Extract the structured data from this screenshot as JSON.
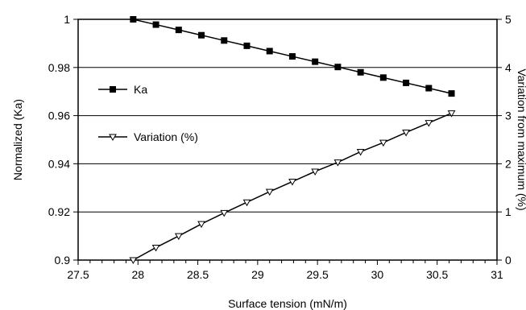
{
  "chart_data": {
    "type": "line",
    "title": "",
    "xlabel": "Surface tension (mN/m)",
    "ylabel": "Normalized (Ka)",
    "y2label": "Variation from maximum (%)",
    "xlim": [
      27.5,
      31
    ],
    "ylim": [
      0.9,
      1
    ],
    "y2lim": [
      0,
      5
    ],
    "x_ticks": [
      "27.5",
      "28",
      "28.5",
      "29",
      "29.5",
      "30",
      "30.5",
      "31"
    ],
    "y_ticks": [
      "0.9",
      "0.92",
      "0.94",
      "0.96",
      "0.98",
      "1"
    ],
    "y2_ticks": [
      "0",
      "1",
      "2",
      "3",
      "4",
      "5"
    ],
    "grid": "horizontal",
    "legend": "upper-left inside",
    "series": [
      {
        "name": "Ka",
        "axis": "left",
        "marker": "filled-square",
        "x": [
          27.96,
          28.15,
          28.34,
          28.53,
          28.72,
          28.91,
          29.1,
          29.29,
          29.48,
          29.67,
          29.86,
          30.05,
          30.24,
          30.43,
          30.62
        ],
        "y": [
          1.0,
          0.9978,
          0.9956,
          0.9934,
          0.9912,
          0.989,
          0.9868,
          0.9846,
          0.9824,
          0.9802,
          0.978,
          0.9758,
          0.9736,
          0.9714,
          0.9692
        ]
      },
      {
        "name": "Variation (%)",
        "axis": "right",
        "marker": "open-triangle-down",
        "x": [
          27.96,
          28.15,
          28.34,
          28.53,
          28.72,
          28.91,
          29.1,
          29.29,
          29.48,
          29.67,
          29.86,
          30.05,
          30.24,
          30.43,
          30.62
        ],
        "y": [
          0.0,
          0.26,
          0.5,
          0.75,
          0.98,
          1.2,
          1.42,
          1.63,
          1.84,
          2.03,
          2.25,
          2.44,
          2.65,
          2.85,
          3.05
        ]
      }
    ]
  }
}
